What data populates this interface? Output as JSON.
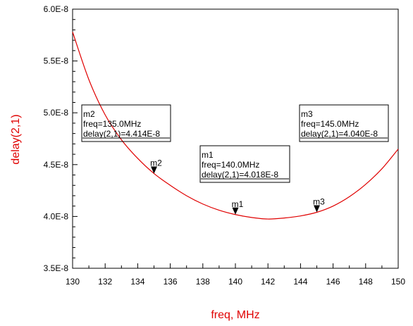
{
  "chart_data": {
    "type": "line",
    "xlabel": "freq, MHz",
    "ylabel": "delay(2,1)",
    "xlim": [
      130,
      150
    ],
    "ylim": [
      3.5e-08,
      6e-08
    ],
    "x_ticks": [
      130,
      132,
      134,
      136,
      138,
      140,
      142,
      144,
      146,
      148,
      150
    ],
    "x_tick_labels": [
      "130",
      "132",
      "134",
      "136",
      "138",
      "140",
      "142",
      "144",
      "146",
      "148",
      "150"
    ],
    "y_ticks": [
      3.5e-08,
      4e-08,
      4.5e-08,
      5e-08,
      5.5e-08,
      6e-08
    ],
    "y_tick_labels": [
      "3.5E-8",
      "4.0E-8",
      "4.5E-8",
      "5.0E-8",
      "5.5E-8",
      "6.0E-8"
    ],
    "grid": false,
    "line_color": "#e00000",
    "series": [
      {
        "x": [
          130,
          131,
          132,
          133,
          134,
          135,
          136,
          137,
          138,
          139,
          140,
          141,
          142,
          143,
          144,
          145,
          146,
          147,
          148,
          149,
          150
        ],
        "y": [
          5.78e-08,
          5.32e-08,
          4.98e-08,
          4.74e-08,
          4.56e-08,
          4.414e-08,
          4.3e-08,
          4.2e-08,
          4.12e-08,
          4.06e-08,
          4.018e-08,
          3.99e-08,
          3.975e-08,
          3.985e-08,
          4.005e-08,
          4.04e-08,
          4.1e-08,
          4.19e-08,
          4.31e-08,
          4.46e-08,
          4.65e-08
        ]
      }
    ],
    "markers": [
      {
        "name": "m1",
        "freq_label": "freq=140.0MHz",
        "delay_label": "delay(2,1)=4.018E-8",
        "x": 140,
        "y": 4.018e-08
      },
      {
        "name": "m2",
        "freq_label": "freq=135.0MHz",
        "delay_label": "delay(2,1)=4.414E-8",
        "x": 135,
        "y": 4.414e-08
      },
      {
        "name": "m3",
        "freq_label": "freq=145.0MHz",
        "delay_label": "delay(2,1)=4.040E-8",
        "x": 145,
        "y": 4.04e-08
      }
    ]
  }
}
